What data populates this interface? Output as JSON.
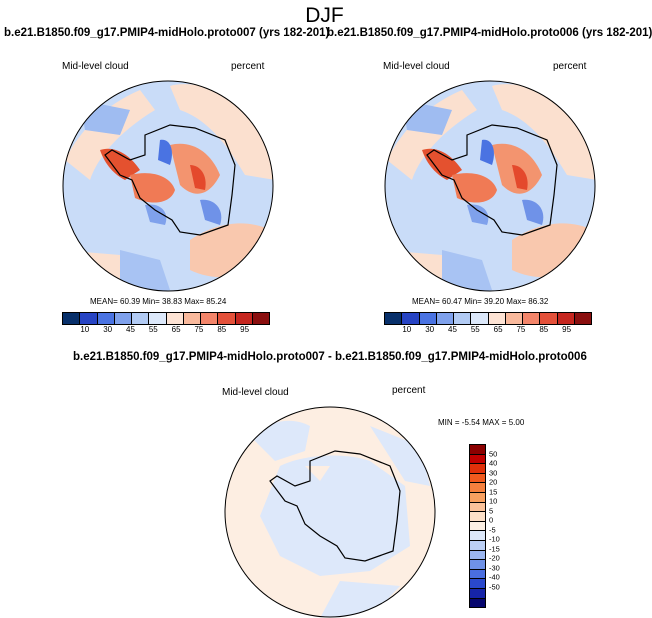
{
  "figure": {
    "title": "DJF"
  },
  "chart_data": [
    {
      "type": "heatmap",
      "projection": "south-polar-stereographic",
      "title": "b.e21.B1850.f09_g17.PMIP4-midHolo.proto007 (yrs 182-201)",
      "left_label": "Mid-level cloud",
      "right_label": "percent",
      "stats": {
        "mean": "60.39",
        "min": "38.83",
        "max": "85.24"
      },
      "stats_text": "MEAN= 60.39  Min= 38.83  Max= 85.24",
      "levels": [
        10,
        30,
        45,
        55,
        65,
        75,
        85,
        95
      ],
      "colorbar_labels": [
        "10",
        "30",
        "45",
        "55",
        "65",
        "75",
        "85",
        "95"
      ],
      "colorbar_colors": [
        "#08306b",
        "#2744c4",
        "#4a73e2",
        "#7fa1ec",
        "#b2cbf4",
        "#dce8fa",
        "#fde3d4",
        "#f9b99c",
        "#f3856a",
        "#e4513a",
        "#c5261f",
        "#8a0f0f"
      ]
    },
    {
      "type": "heatmap",
      "projection": "south-polar-stereographic",
      "title": "b.e21.B1850.f09_g17.PMIP4-midHolo.proto006 (yrs 182-201)",
      "left_label": "Mid-level cloud",
      "right_label": "percent",
      "stats": {
        "mean": "60.47",
        "min": "39.20",
        "max": "86.32"
      },
      "stats_text": "MEAN= 60.47  Min= 39.20  Max= 86.32",
      "levels": [
        10,
        30,
        45,
        55,
        65,
        75,
        85,
        95
      ],
      "colorbar_labels": [
        "10",
        "30",
        "45",
        "55",
        "65",
        "75",
        "85",
        "95"
      ],
      "colorbar_colors": [
        "#08306b",
        "#2744c4",
        "#4a73e2",
        "#7fa1ec",
        "#b2cbf4",
        "#dce8fa",
        "#fde3d4",
        "#f9b99c",
        "#f3856a",
        "#e4513a",
        "#c5261f",
        "#8a0f0f"
      ]
    },
    {
      "type": "heatmap",
      "projection": "south-polar-stereographic",
      "title": "b.e21.B1850.f09_g17.PMIP4-midHolo.proto007 - b.e21.B1850.f09_g17.PMIP4-midHolo.proto006",
      "left_label": "Mid-level cloud",
      "right_label": "percent",
      "stats": {
        "min": "-5.54",
        "max": "5.00"
      },
      "stats_text": "MIN = -5.54 MAX =  5.00",
      "levels": [
        50,
        40,
        30,
        20,
        15,
        10,
        5,
        0,
        -5,
        -10,
        -15,
        -20,
        -30,
        -40,
        -50
      ],
      "colorbar_labels": [
        "50",
        "40",
        "30",
        "20",
        "15",
        "10",
        "5",
        "0",
        "-5",
        "-10",
        "-15",
        "-20",
        "-30",
        "-40",
        "-50"
      ],
      "colorbar_colors": [
        "#8b0000",
        "#c00000",
        "#e0300a",
        "#f05a1e",
        "#f5803e",
        "#f8a060",
        "#fbc29a",
        "#fde0c8",
        "#fdf0e4",
        "#dde8fa",
        "#bcd0f6",
        "#9bb6f0",
        "#6f92e8",
        "#4a6ee0",
        "#2a48cc",
        "#1624a8",
        "#06066e"
      ]
    }
  ]
}
